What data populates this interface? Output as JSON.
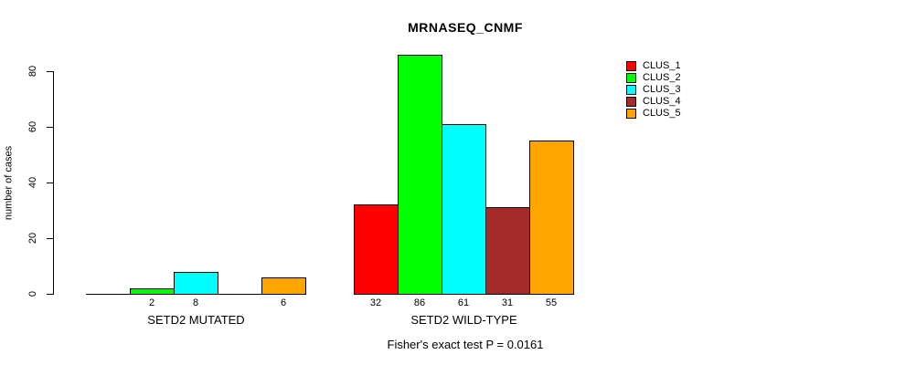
{
  "title": "MRNASEQ_CNMF",
  "chart_data": {
    "type": "bar",
    "title": "MRNASEQ_CNMF",
    "xlabel": "",
    "ylabel": "number of cases",
    "yticks": [
      0,
      20,
      40,
      60,
      80
    ],
    "ylim": [
      0,
      86
    ],
    "grid": false,
    "background_color": "#ffffff",
    "axis_color": "#000000",
    "categories": [
      "SETD2 MUTATED",
      "SETD2 WILD-TYPE"
    ],
    "series": [
      {
        "name": "CLUS_1",
        "color": "#ff0000",
        "values": [
          0,
          32
        ]
      },
      {
        "name": "CLUS_2",
        "color": "#00ff00",
        "values": [
          2,
          86
        ]
      },
      {
        "name": "CLUS_3",
        "color": "#00ffff",
        "values": [
          8,
          61
        ]
      },
      {
        "name": "CLUS_4",
        "color": "#a52a2a",
        "values": [
          0,
          31
        ]
      },
      {
        "name": "CLUS_5",
        "color": "#ffa500",
        "values": [
          6,
          55
        ]
      }
    ],
    "bar_value_labels": {
      "SETD2 MUTATED": [
        "",
        "2",
        "8",
        "",
        "6"
      ],
      "SETD2 WILD-TYPE": [
        "32",
        "86",
        "61",
        "31",
        "55"
      ]
    },
    "legend": {
      "position": "top-right",
      "entries": [
        "CLUS_1",
        "CLUS_2",
        "CLUS_3",
        "CLUS_4",
        "CLUS_5"
      ]
    },
    "footer": "Fisher's exact test P = 0.0161"
  }
}
